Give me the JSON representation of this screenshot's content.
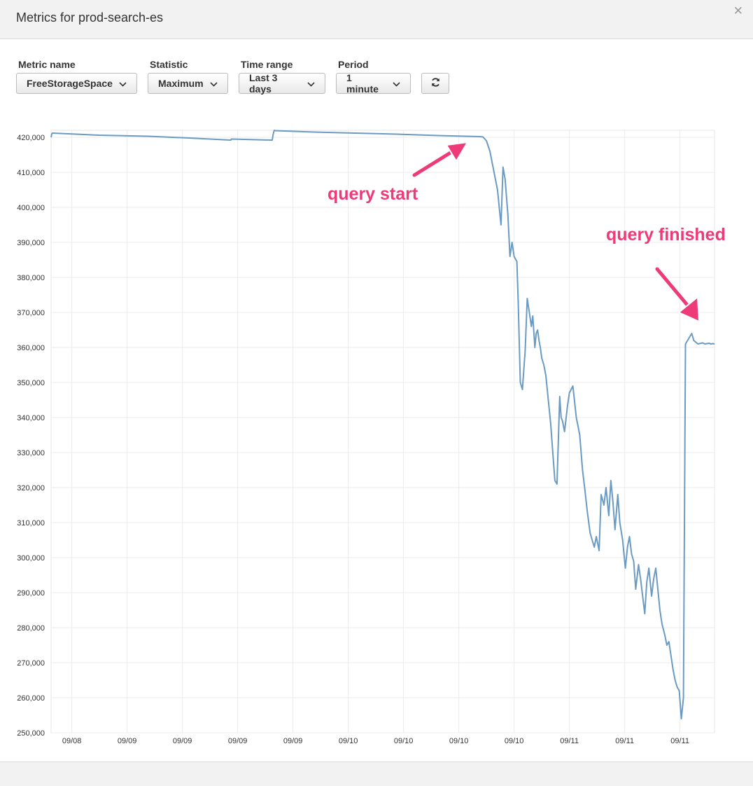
{
  "window": {
    "title": "Metrics for prod-search-es",
    "close_icon": "close-icon"
  },
  "controls": {
    "metric": {
      "label": "Metric name",
      "value": "FreeStorageSpace"
    },
    "statistic": {
      "label": "Statistic",
      "value": "Maximum"
    },
    "time_range": {
      "label": "Time range",
      "value": "Last 3 days"
    },
    "period": {
      "label": "Period",
      "value": "1 minute"
    },
    "refresh_icon": "refresh-icon"
  },
  "annotations": {
    "start": "query start",
    "finish": "query finished",
    "color": "#ee3a78"
  },
  "chart_data": {
    "type": "line",
    "line_color": "#6b9bc3",
    "grid": true,
    "ylim": [
      250000,
      422000
    ],
    "y_ticks": [
      "420,000",
      "410,000",
      "400,000",
      "390,000",
      "380,000",
      "370,000",
      "360,000",
      "350,000",
      "340,000",
      "330,000",
      "320,000",
      "310,000",
      "300,000",
      "290,000",
      "280,000",
      "270,000",
      "260,000",
      "250,000"
    ],
    "y_tick_values": [
      420000,
      410000,
      400000,
      390000,
      380000,
      370000,
      360000,
      350000,
      340000,
      330000,
      320000,
      310000,
      300000,
      290000,
      280000,
      270000,
      260000,
      250000
    ],
    "x_ticks": [
      "09/08",
      "09/09",
      "09/09",
      "09/09",
      "09/09",
      "09/10",
      "09/10",
      "09/10",
      "09/10",
      "09/11",
      "09/11",
      "09/11"
    ],
    "x_tick_hours": [
      3,
      11,
      19,
      27,
      35,
      43,
      51,
      59,
      67,
      75,
      83,
      91
    ],
    "x_range_hours": [
      0,
      96
    ],
    "series": [
      {
        "x": [
          0,
          0.1,
          0.2,
          7,
          14,
          20,
          26,
          26.1,
          32,
          32.1,
          32.2,
          32.3,
          32.4,
          38,
          44,
          50,
          56,
          62,
          62.5,
          63,
          63.5,
          64,
          64.6,
          65.1,
          65.4,
          65.7,
          66.1,
          66.4,
          66.7,
          67,
          67.4,
          67.6,
          67.9,
          68.2,
          68.6,
          68.9,
          69.2,
          69.5,
          69.7,
          70,
          70.2,
          70.4,
          70.6,
          70.8,
          71,
          71.3,
          71.6,
          71.9,
          72.3,
          72.6,
          72.9,
          73.2,
          73.6,
          73.8,
          74,
          74.3,
          74.7,
          75,
          75.5,
          76,
          76.2,
          76.5,
          76.9,
          77.2,
          77.6,
          78,
          78.3,
          78.6,
          78.9,
          79.3,
          79.6,
          80,
          80.3,
          80.7,
          81,
          81.3,
          81.6,
          82,
          82.3,
          82.7,
          83.1,
          83.4,
          83.7,
          84,
          84.3,
          84.6,
          85,
          85.3,
          85.6,
          85.9,
          86.2,
          86.5,
          86.9,
          87.2,
          87.5,
          87.8,
          88.1,
          88.4,
          88.8,
          89.1,
          89.4,
          89.7,
          90,
          90.3,
          90.6,
          90.9,
          91.2,
          91.5,
          91.8,
          92.1,
          92.4,
          92.7,
          93,
          93.3,
          93.6,
          94,
          94.3,
          94.6,
          94.9,
          95.2,
          95.5,
          95.8,
          96
        ],
        "y": [
          420000,
          421000,
          421200,
          420600,
          420300,
          419800,
          419200,
          419500,
          419200,
          420500,
          421400,
          422000,
          421900,
          421500,
          421200,
          420900,
          420500,
          420200,
          420100,
          419000,
          416000,
          411000,
          405000,
          395000,
          411500,
          408000,
          398000,
          386000,
          390000,
          386000,
          384500,
          373000,
          350000,
          348000,
          359000,
          374000,
          370000,
          366000,
          369000,
          360000,
          364000,
          365000,
          362000,
          360000,
          357000,
          355000,
          352000,
          346000,
          338000,
          330000,
          322000,
          321000,
          346000,
          340000,
          339000,
          336000,
          343000,
          347000,
          349000,
          340000,
          338000,
          335000,
          325000,
          320000,
          313000,
          307000,
          305000,
          303000,
          306000,
          302000,
          318000,
          315000,
          320000,
          312000,
          322000,
          316000,
          308000,
          318000,
          310000,
          305000,
          297000,
          303000,
          306000,
          301000,
          299000,
          291000,
          298000,
          294000,
          289000,
          284000,
          293000,
          297000,
          289000,
          294000,
          297000,
          291000,
          285000,
          281000,
          278000,
          275000,
          276000,
          272000,
          268000,
          265000,
          263000,
          262000,
          254000,
          260000,
          361000,
          362000,
          363000,
          364000,
          362000,
          361500,
          361000,
          361200,
          361300,
          361000,
          361100,
          361200,
          361000,
          361100,
          361000
        ],
        "trim_note": ""
      }
    ]
  }
}
